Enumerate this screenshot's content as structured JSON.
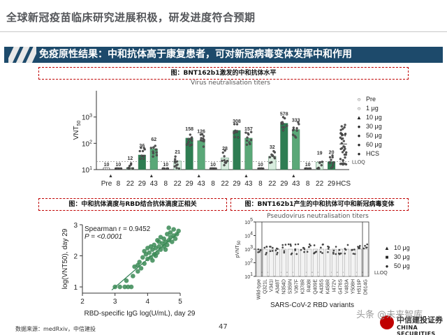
{
  "slide": {
    "title": "全球新冠疫苗临床研究进展积极，研发进度符合预期",
    "banner": "免疫原性结果：中和抗体高于康复患者，可对新冠病毒变体发挥中和作用",
    "page_number": "47",
    "source": "数据来源：medRxiv，中信建投",
    "logo_cn": "中信建投证券",
    "logo_en": "CHINA SECURITIES",
    "watermark": "头条 @未来智库"
  },
  "captions": {
    "fig1": "图：BNT162b1激发的中和抗体水平",
    "fig2": "图：中和抗体滴度与RBD结合抗体滴度正相关",
    "fig3": "图：BNT162b1产生的中和抗体可中和新冠病毒变体"
  },
  "colors": {
    "banner": "#1d4a6b",
    "caption_border": "#c00000",
    "bar_light": "#d8ecde",
    "bar_mid": "#a9d4b6",
    "bar_dark": "#5aa878",
    "bar_darkest": "#2e7d52",
    "scatter": "#3a8a55",
    "fit_line": "#2e7d52"
  },
  "chart_data": [
    {
      "type": "bar",
      "title": "Virus neutralisation titers",
      "ylabel": "VNT50",
      "yscale": "log",
      "ylim": [
        10,
        10000
      ],
      "yticks": [
        "10^1",
        "10^2",
        "10^3"
      ],
      "reference_line": {
        "label": "LLOQ",
        "value": 20
      },
      "legend": [
        "Pre",
        "1 μg",
        "10 μg",
        "30 μg",
        "50 μg",
        "60 μg",
        "HCS"
      ],
      "groups": [
        {
          "dose": "1 μg",
          "categories": [
            "8",
            "22",
            "29",
            "43"
          ],
          "values": [
            10,
            12,
            36,
            62
          ]
        },
        {
          "dose": "10 μg",
          "categories": [
            "8",
            "22",
            "29",
            "43"
          ],
          "values": [
            10,
            21,
            158,
            126
          ]
        },
        {
          "dose": "30 μg",
          "categories": [
            "8",
            "22",
            "29",
            "43"
          ],
          "values": [
            10,
            28,
            308,
            157
          ]
        },
        {
          "dose": "50 μg",
          "categories": [
            "8",
            "22",
            "29",
            "43"
          ],
          "values": [
            10,
            32,
            578,
            333
          ]
        },
        {
          "dose": "60 μg",
          "categories": [
            "8",
            "22",
            "29"
          ],
          "values": [
            10,
            19,
            20
          ]
        }
      ],
      "pre_value": 10,
      "hcs_value": 94,
      "x_labels": [
        "Pre",
        "8",
        "22",
        "29",
        "43",
        "8",
        "22",
        "29",
        "43",
        "8",
        "22",
        "29",
        "43",
        "8",
        "22",
        "29",
        "43",
        "8",
        "22",
        "29",
        "HCS"
      ]
    },
    {
      "type": "scatter",
      "xlabel": "RBD-specific IgG log(U/mL), day 29",
      "ylabel": "log(VNT50), day 29",
      "xlim": [
        2,
        5
      ],
      "ylim": [
        0.8,
        3.0
      ],
      "xticks": [
        "2",
        "3",
        "4",
        "5"
      ],
      "yticks": [
        "1",
        "2",
        "3"
      ],
      "annotation": [
        "Spearman r = 0.9452",
        "P = <0.0001"
      ],
      "points": [
        [
          3.0,
          1.0
        ],
        [
          3.15,
          1.0
        ],
        [
          3.3,
          1.0
        ],
        [
          3.4,
          1.0
        ],
        [
          3.5,
          1.0
        ],
        [
          3.35,
          1.2
        ],
        [
          3.55,
          1.35
        ],
        [
          3.7,
          1.5
        ],
        [
          3.6,
          1.65
        ],
        [
          3.8,
          1.6
        ],
        [
          3.75,
          1.8
        ],
        [
          3.85,
          1.95
        ],
        [
          3.9,
          1.75
        ],
        [
          4.0,
          1.9
        ],
        [
          3.95,
          2.05
        ],
        [
          4.05,
          2.1
        ],
        [
          4.1,
          1.95
        ],
        [
          4.15,
          2.2
        ],
        [
          4.2,
          2.05
        ],
        [
          4.25,
          2.25
        ],
        [
          4.3,
          2.1
        ],
        [
          4.35,
          2.3
        ],
        [
          4.2,
          2.35
        ],
        [
          4.4,
          2.2
        ],
        [
          4.45,
          2.4
        ],
        [
          4.5,
          2.3
        ],
        [
          4.35,
          2.45
        ],
        [
          4.55,
          2.45
        ],
        [
          4.6,
          2.35
        ],
        [
          4.65,
          2.5
        ],
        [
          4.7,
          2.6
        ],
        [
          4.5,
          2.55
        ],
        [
          4.75,
          2.45
        ],
        [
          4.8,
          2.65
        ],
        [
          4.4,
          2.6
        ],
        [
          4.85,
          2.55
        ],
        [
          4.9,
          2.7
        ],
        [
          4.7,
          2.75
        ],
        [
          4.95,
          2.8
        ],
        [
          4.6,
          2.7
        ],
        [
          4.3,
          2.5
        ],
        [
          4.8,
          2.85
        ],
        [
          4.1,
          2.3
        ],
        [
          4.0,
          2.25
        ],
        [
          3.9,
          2.15
        ],
        [
          4.55,
          2.2
        ],
        [
          4.25,
          2.0
        ],
        [
          4.15,
          1.85
        ],
        [
          3.7,
          1.7
        ],
        [
          4.65,
          2.9
        ]
      ],
      "fit": [
        [
          2.9,
          0.9
        ],
        [
          4.95,
          2.75
        ]
      ]
    },
    {
      "type": "bar",
      "title": "Pseudovirus neutralisation titers",
      "ylabel": "pVNT50",
      "yscale": "log",
      "ylim": [
        10,
        100000
      ],
      "yticks": [
        "10^1",
        "10^2",
        "10^3",
        "10^4",
        "10^5"
      ],
      "xlabel": "SARS-CoV-2 RBD variants",
      "reference_line": {
        "label": "LLOQ",
        "value": 20
      },
      "legend": [
        "10 μg",
        "30 μg",
        "50 μg"
      ],
      "categories": [
        "Wild-type",
        "Q321L",
        "V341I",
        "A348T",
        "N354D",
        "S359N",
        "V367F",
        "K378R",
        "R408I",
        "Q409E",
        "A435S",
        "K458R",
        "I472V",
        "G476S",
        "V483A",
        "Y508H",
        "H519P",
        "D614G"
      ],
      "values": [
        1000,
        1000,
        1000,
        1000,
        1000,
        1000,
        1000,
        1000,
        1000,
        1000,
        1000,
        1000,
        1000,
        1000,
        1000,
        1000,
        1000,
        1000
      ]
    }
  ]
}
